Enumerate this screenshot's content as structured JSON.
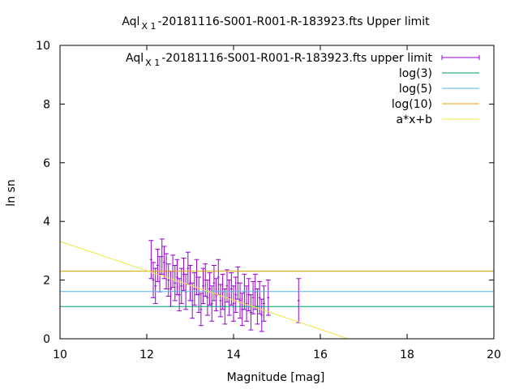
{
  "chart_data": {
    "type": "scatter",
    "title": "Aql X 1 -20181116-S001-R001-R-183923.fts Upper limit",
    "title_parts": {
      "main": "Aql",
      "sub": "X 1",
      "rest": "-20181116-S001-R001-R-183923.fts Upper limit"
    },
    "xlabel": "Magnitude [mag]",
    "ylabel": "ln sn",
    "xlim": [
      10,
      20
    ],
    "ylim": [
      0,
      10
    ],
    "xticks": [
      10,
      12,
      14,
      16,
      18,
      20
    ],
    "yticks": [
      0,
      2,
      4,
      6,
      8,
      10
    ],
    "grid": false,
    "legend_position": "top-right",
    "series": [
      {
        "name": "Aql X 1 -20181116-S001-R001-R-183923.fts upper limit",
        "name_parts": {
          "main": "Aql",
          "sub": "X 1",
          "rest": "-20181116-S001-R001-R-183923.fts upper limit"
        },
        "kind": "errorbars",
        "color": "#9400d3",
        "points": [
          [
            12.1,
            2.7,
            0.65
          ],
          [
            12.15,
            2.0,
            0.6
          ],
          [
            12.2,
            1.8,
            0.6
          ],
          [
            12.25,
            2.5,
            0.55
          ],
          [
            12.3,
            2.2,
            0.6
          ],
          [
            12.35,
            2.8,
            0.6
          ],
          [
            12.4,
            2.6,
            0.55
          ],
          [
            12.45,
            2.3,
            0.6
          ],
          [
            12.5,
            2.0,
            0.55
          ],
          [
            12.55,
            1.7,
            0.6
          ],
          [
            12.6,
            2.3,
            0.55
          ],
          [
            12.65,
            1.9,
            0.6
          ],
          [
            12.7,
            2.1,
            0.6
          ],
          [
            12.75,
            1.5,
            0.55
          ],
          [
            12.8,
            1.8,
            0.6
          ],
          [
            12.85,
            2.2,
            0.55
          ],
          [
            12.9,
            1.6,
            0.6
          ],
          [
            12.95,
            2.4,
            0.55
          ],
          [
            13.0,
            1.9,
            0.6
          ],
          [
            13.05,
            1.3,
            0.6
          ],
          [
            13.1,
            1.7,
            0.55
          ],
          [
            13.15,
            2.1,
            0.6
          ],
          [
            13.2,
            1.5,
            0.6
          ],
          [
            13.25,
            1.0,
            0.55
          ],
          [
            13.3,
            1.8,
            0.6
          ],
          [
            13.35,
            2.0,
            0.55
          ],
          [
            13.4,
            1.4,
            0.6
          ],
          [
            13.45,
            1.7,
            0.55
          ],
          [
            13.5,
            1.2,
            0.6
          ],
          [
            13.55,
            1.9,
            0.6
          ],
          [
            13.6,
            1.5,
            0.55
          ],
          [
            13.65,
            2.1,
            0.6
          ],
          [
            13.7,
            1.3,
            0.55
          ],
          [
            13.75,
            1.6,
            0.6
          ],
          [
            13.8,
            1.1,
            0.6
          ],
          [
            13.85,
            1.8,
            0.55
          ],
          [
            13.9,
            1.4,
            0.6
          ],
          [
            13.95,
            1.7,
            0.55
          ],
          [
            14.0,
            1.2,
            0.6
          ],
          [
            14.05,
            1.5,
            0.6
          ],
          [
            14.1,
            1.9,
            0.55
          ],
          [
            14.15,
            1.3,
            0.6
          ],
          [
            14.2,
            1.0,
            0.55
          ],
          [
            14.25,
            1.6,
            0.6
          ],
          [
            14.3,
            1.2,
            0.6
          ],
          [
            14.35,
            1.5,
            0.55
          ],
          [
            14.4,
            0.9,
            0.6
          ],
          [
            14.45,
            1.4,
            0.55
          ],
          [
            14.5,
            1.6,
            0.6
          ],
          [
            14.55,
            1.1,
            0.6
          ],
          [
            14.6,
            1.4,
            0.55
          ],
          [
            14.65,
            0.8,
            0.55
          ],
          [
            14.7,
            1.2,
            0.6
          ],
          [
            14.8,
            1.4,
            0.6
          ],
          [
            15.5,
            1.3,
            0.75
          ]
        ]
      },
      {
        "name": "log(3)",
        "kind": "hline",
        "y": 1.0986,
        "color": "#009e73"
      },
      {
        "name": "log(5)",
        "kind": "hline",
        "y": 1.6094,
        "color": "#56b4e9"
      },
      {
        "name": "log(10)",
        "kind": "hline",
        "y": 2.3026,
        "color": "#e69f00"
      },
      {
        "name": "a*x+b",
        "kind": "line",
        "color": "#f0e442",
        "a": -0.5,
        "b": 8.32
      }
    ]
  }
}
